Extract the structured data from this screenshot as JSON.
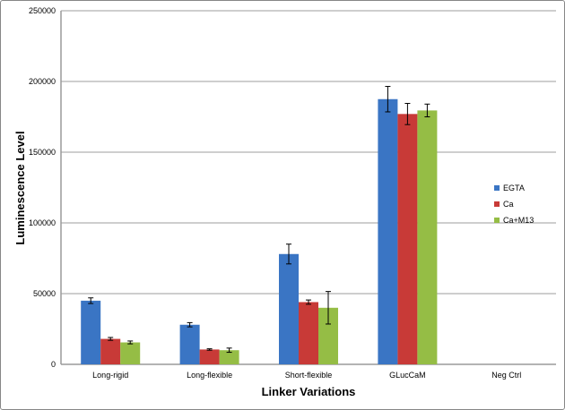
{
  "chart_data": {
    "type": "bar",
    "title": "",
    "xlabel": "Linker Variations",
    "ylabel": "Luminescence Level",
    "ylim": [
      0,
      250000
    ],
    "yticks": [
      "0",
      "50000",
      "100000",
      "150000",
      "200000",
      "250000"
    ],
    "grid": true,
    "legend_position": "right",
    "categories": [
      "Long-rigid",
      "Long-flexible",
      "Short-flexible",
      "GLucCaM",
      "Neg Ctrl"
    ],
    "series": [
      {
        "name": "EGTA",
        "color": "#3a75c4",
        "values": [
          45000,
          28000,
          78000,
          187500,
          0
        ],
        "errors": [
          2000,
          1500,
          7000,
          9000,
          0
        ]
      },
      {
        "name": "Ca",
        "color": "#c83a37",
        "values": [
          18000,
          10500,
          44000,
          177000,
          0
        ],
        "errors": [
          1000,
          500,
          1500,
          7500,
          0
        ]
      },
      {
        "name": "Ca+M13",
        "color": "#95bd45",
        "values": [
          15500,
          10000,
          40000,
          179500,
          0
        ],
        "errors": [
          1000,
          1500,
          11500,
          4500,
          0
        ]
      }
    ]
  }
}
